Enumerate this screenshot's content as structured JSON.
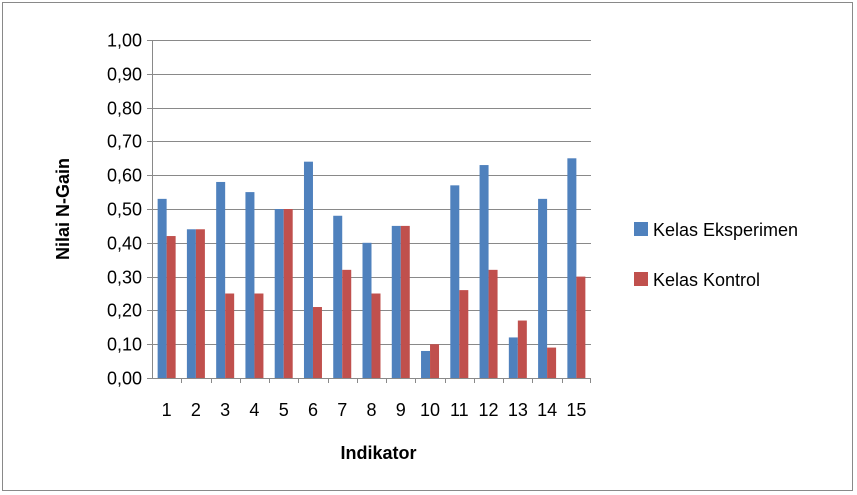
{
  "chart_data": {
    "type": "bar",
    "categories": [
      "1",
      "2",
      "3",
      "4",
      "5",
      "6",
      "7",
      "8",
      "9",
      "10",
      "11",
      "12",
      "13",
      "14",
      "15"
    ],
    "series": [
      {
        "name": "Kelas Eksperimen",
        "color": "#4F81BD",
        "values": [
          0.53,
          0.44,
          0.58,
          0.55,
          0.5,
          0.64,
          0.48,
          0.4,
          0.45,
          0.08,
          0.57,
          0.63,
          0.12,
          0.53,
          0.65
        ]
      },
      {
        "name": "Kelas Kontrol",
        "color": "#C0504D",
        "values": [
          0.42,
          0.44,
          0.25,
          0.25,
          0.5,
          0.21,
          0.32,
          0.25,
          0.45,
          0.1,
          0.26,
          0.32,
          0.17,
          0.09,
          0.3
        ]
      }
    ],
    "xlabel": "Indikator",
    "ylabel": "Nilai N-Gain",
    "ylim": [
      0,
      1.0
    ],
    "ytick_step": 0.1,
    "ytick_labels": [
      "0,00",
      "0,10",
      "0,20",
      "0,30",
      "0,40",
      "0,50",
      "0,60",
      "0,70",
      "0,80",
      "0,90",
      "1,00"
    ],
    "grid": true,
    "legend_position": "right"
  }
}
